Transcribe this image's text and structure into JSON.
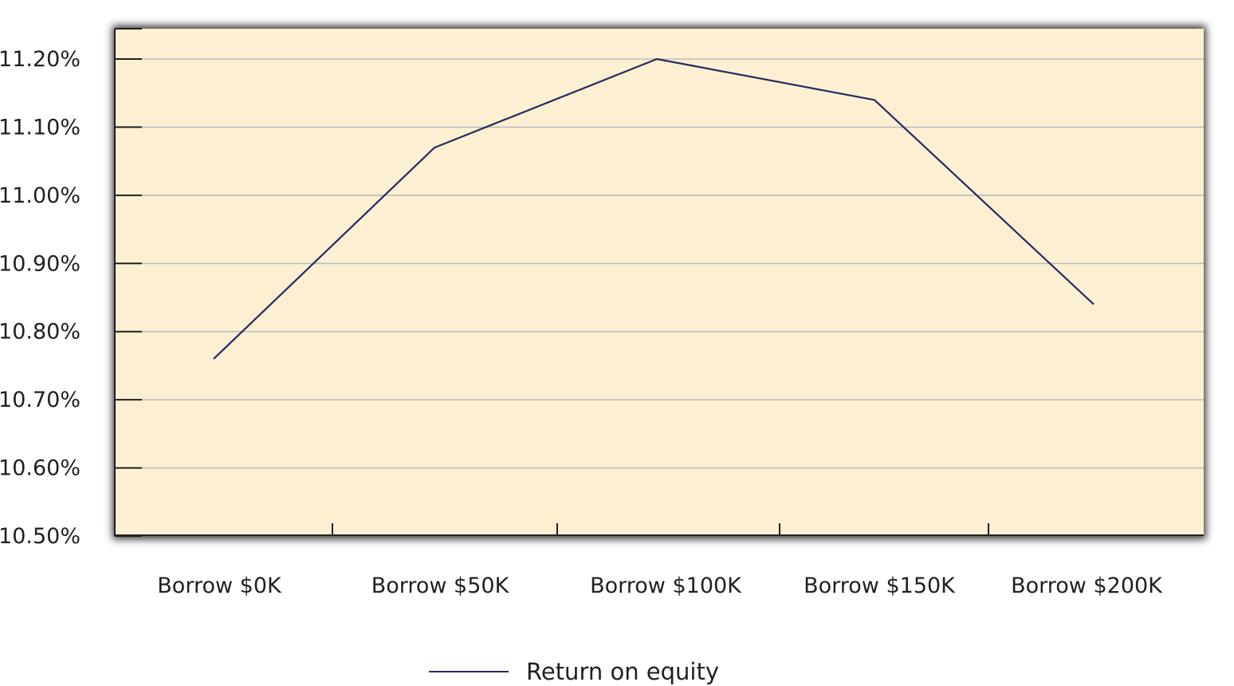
{
  "chart_data": {
    "type": "line",
    "title": "",
    "xlabel": "",
    "ylabel": "",
    "categories": [
      "Borrow $0K",
      "Borrow $50K",
      "Borrow $100K",
      "Borrow $150K",
      "Borrow $200K"
    ],
    "series": [
      {
        "name": "Return on equity",
        "values": [
          10.76,
          11.07,
          11.2,
          11.14,
          10.84
        ]
      }
    ],
    "ylim": [
      10.5,
      11.25
    ],
    "y_ticks": [
      "10.50%",
      "10.60%",
      "10.70%",
      "10.80%",
      "10.90%",
      "11.00%",
      "11.10%",
      "11.20%"
    ],
    "y_tick_values": [
      10.5,
      10.6,
      10.7,
      10.8,
      10.9,
      11.0,
      11.1,
      11.2
    ],
    "grid": true,
    "legend_position": "bottom-center",
    "colors": {
      "plot_background": "#fdf0d2",
      "line": "#262a5e",
      "gridline": "#bdbdbd",
      "axis": "#231f20",
      "frame_shadow": "#3a3a3a"
    }
  }
}
